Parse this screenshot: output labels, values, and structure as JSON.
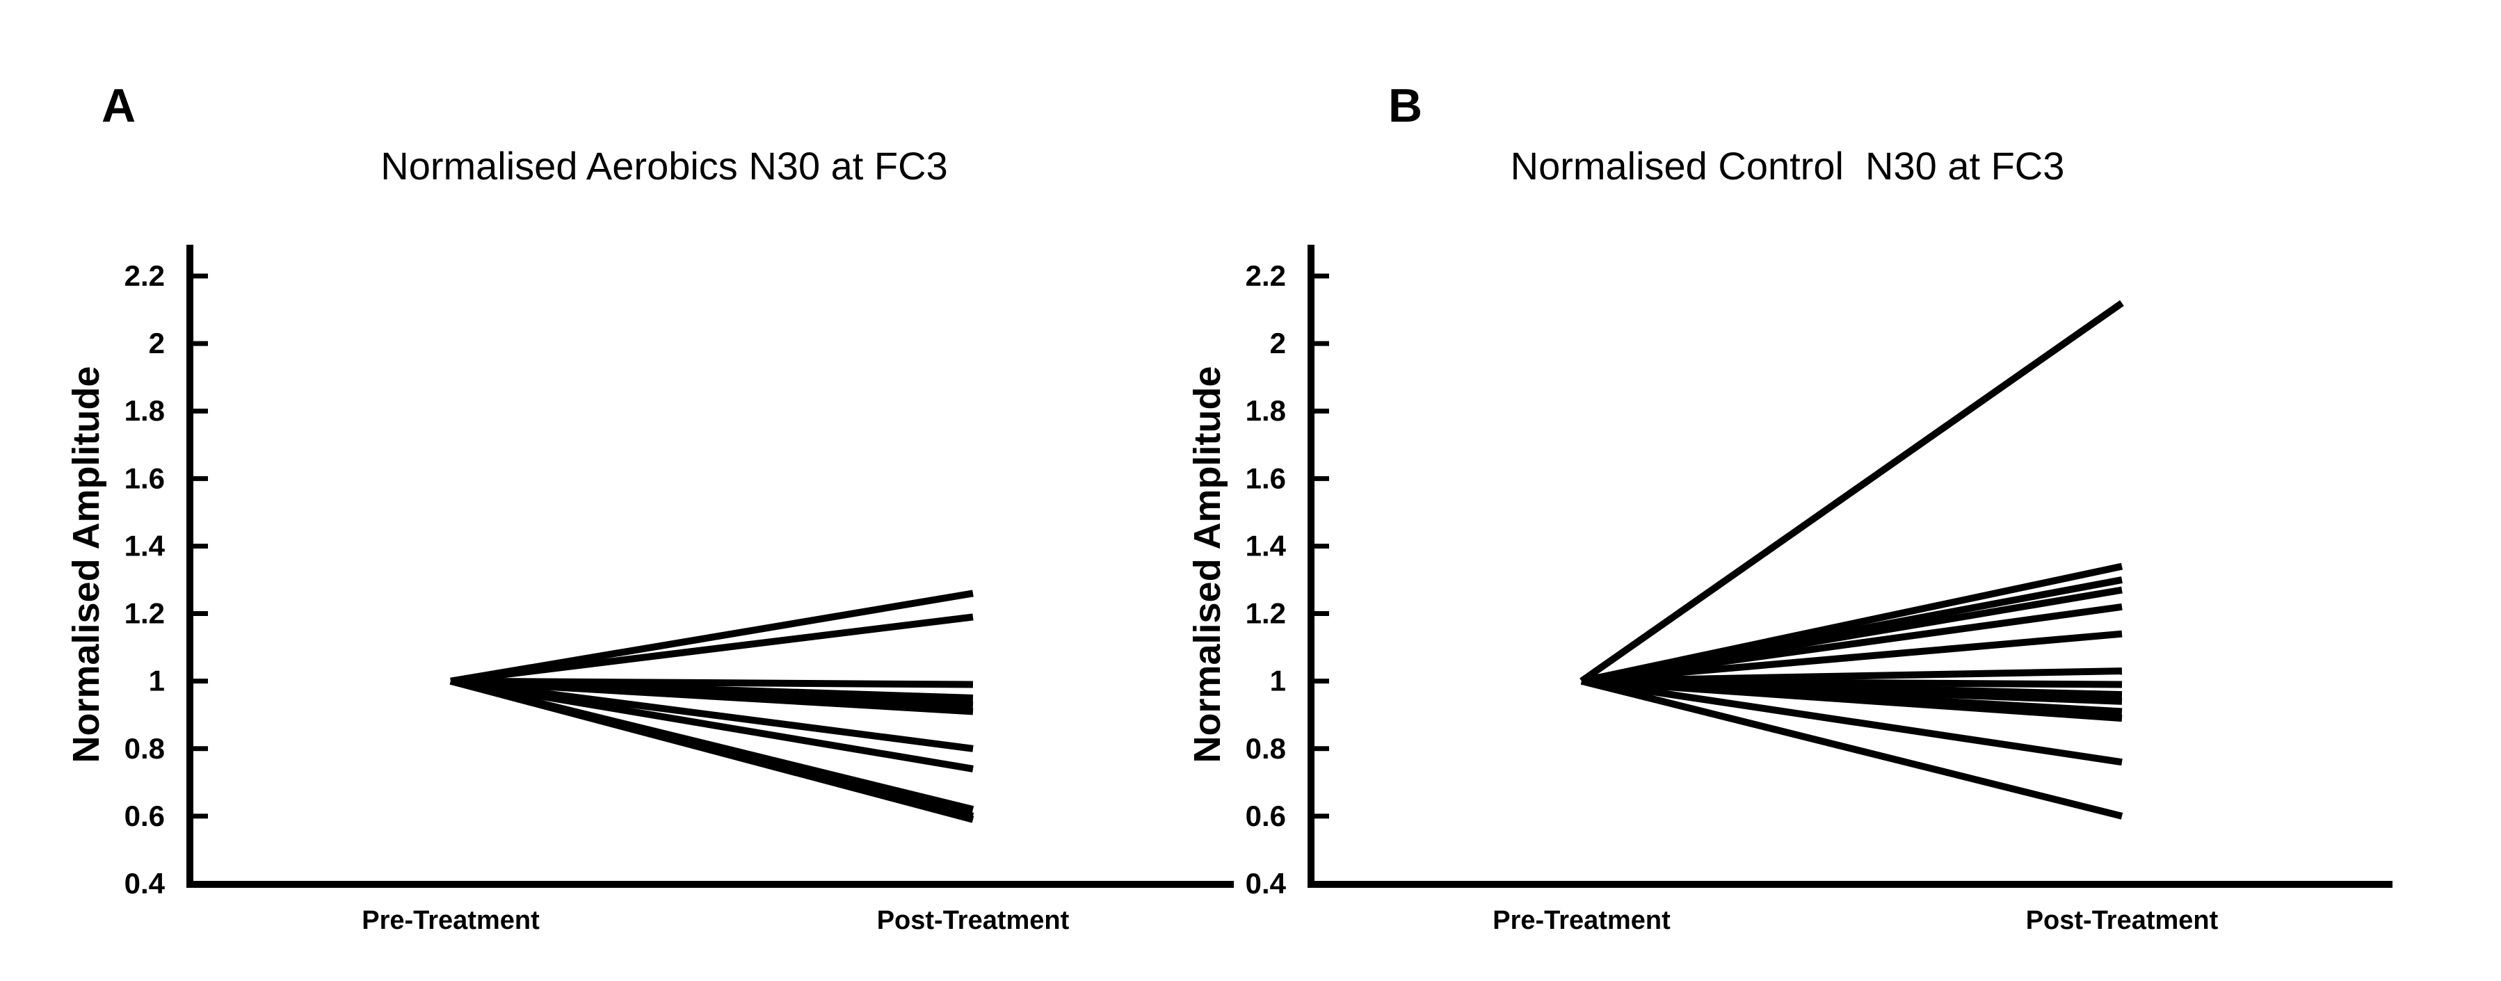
{
  "colors": {
    "ink": "#000000",
    "background": "#ffffff"
  },
  "chart_data": [
    {
      "type": "line",
      "panel_label": "A",
      "title": "Normalised Aerobics N30 at FC3",
      "xlabel": "",
      "ylabel": "Normalised Amplitude",
      "categories": [
        "Pre-Treatment",
        "Post-Treatment"
      ],
      "ylim": [
        0.4,
        2.2
      ],
      "yticks": [
        0.4,
        0.6,
        0.8,
        1,
        1.2,
        1.4,
        1.6,
        1.8,
        2,
        2.2
      ],
      "ytick_labels": [
        "0.4",
        "0.6",
        "0.8",
        "1",
        "1.2",
        "1.4",
        "1.6",
        "1.8",
        "2",
        "2.2"
      ],
      "grid": false,
      "legend": false,
      "line_color": "#000000",
      "series": [
        {
          "values": [
            1,
            1.26
          ]
        },
        {
          "values": [
            1,
            1.19
          ]
        },
        {
          "values": [
            1,
            0.99
          ]
        },
        {
          "values": [
            1,
            0.95
          ]
        },
        {
          "values": [
            1,
            0.93
          ]
        },
        {
          "values": [
            1,
            0.91
          ]
        },
        {
          "values": [
            1,
            0.8
          ]
        },
        {
          "values": [
            1,
            0.74
          ]
        },
        {
          "values": [
            1,
            0.62
          ]
        },
        {
          "values": [
            1,
            0.6
          ]
        },
        {
          "values": [
            1,
            0.59
          ]
        }
      ]
    },
    {
      "type": "line",
      "panel_label": "B",
      "title": "Normalised Control  N30 at FC3",
      "xlabel": "",
      "ylabel": "Normalised Amplitude",
      "categories": [
        "Pre-Treatment",
        "Post-Treatment"
      ],
      "ylim": [
        0.4,
        2.2
      ],
      "yticks": [
        0.4,
        0.6,
        0.8,
        1,
        1.2,
        1.4,
        1.6,
        1.8,
        2,
        2.2
      ],
      "ytick_labels": [
        "0.4",
        "0.6",
        "0.8",
        "1",
        "1.2",
        "1.4",
        "1.6",
        "1.8",
        "2",
        "2.2"
      ],
      "grid": false,
      "legend": false,
      "line_color": "#000000",
      "series": [
        {
          "values": [
            1,
            2.12
          ]
        },
        {
          "values": [
            1,
            1.34
          ]
        },
        {
          "values": [
            1,
            1.3
          ]
        },
        {
          "values": [
            1,
            1.27
          ]
        },
        {
          "values": [
            1,
            1.22
          ]
        },
        {
          "values": [
            1,
            1.14
          ]
        },
        {
          "values": [
            1,
            1.03
          ]
        },
        {
          "values": [
            1,
            0.99
          ]
        },
        {
          "values": [
            1,
            0.96
          ]
        },
        {
          "values": [
            1,
            0.94
          ]
        },
        {
          "values": [
            1,
            0.91
          ]
        },
        {
          "values": [
            1,
            0.89
          ]
        },
        {
          "values": [
            1,
            0.76
          ]
        },
        {
          "values": [
            1,
            0.6
          ]
        }
      ]
    }
  ]
}
